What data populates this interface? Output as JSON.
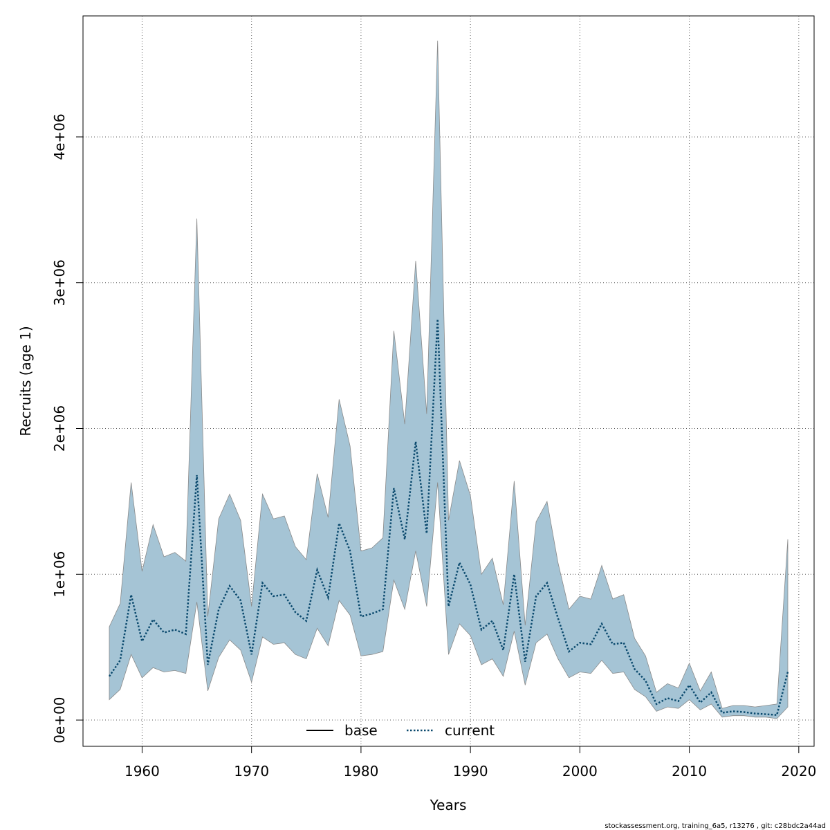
{
  "chart_data": {
    "type": "area",
    "xlabel": "Years",
    "ylabel": "Recruits (age 1)",
    "xlim": [
      1954.6,
      2021.4
    ],
    "ylim": [
      -180000,
      4830000
    ],
    "x_ticks": [
      1960,
      1970,
      1980,
      1990,
      2000,
      2010,
      2020
    ],
    "x_tick_labels": [
      "1960",
      "1970",
      "1980",
      "1990",
      "2000",
      "2010",
      "2020"
    ],
    "y_ticks": [
      0,
      1000000,
      2000000,
      3000000,
      4000000
    ],
    "y_tick_labels": [
      "0e+00",
      "1e+06",
      "2e+06",
      "3e+06",
      "4e+06"
    ],
    "grid": true,
    "legend": {
      "placement": "bottom-center",
      "items": [
        {
          "label": "base",
          "style": "solid",
          "color": "#000000"
        },
        {
          "label": "current",
          "style": "dotted",
          "color": "#0b4a6e"
        }
      ]
    },
    "colors": {
      "band_fill": "#a5c4d5",
      "band_stroke": "#8a8a8a",
      "current_line": "#0b4a6e",
      "base_line": "#000000"
    },
    "x": [
      1957,
      1958,
      1959,
      1960,
      1961,
      1962,
      1963,
      1964,
      1965,
      1966,
      1967,
      1968,
      1969,
      1970,
      1971,
      1972,
      1973,
      1974,
      1975,
      1976,
      1977,
      1978,
      1979,
      1980,
      1981,
      1982,
      1983,
      1984,
      1985,
      1986,
      1987,
      1988,
      1989,
      1990,
      1991,
      1992,
      1993,
      1994,
      1995,
      1996,
      1997,
      1998,
      1999,
      2000,
      2001,
      2002,
      2003,
      2004,
      2005,
      2006,
      2007,
      2008,
      2009,
      2010,
      2011,
      2012,
      2013,
      2014,
      2015,
      2016,
      2017,
      2018,
      2019
    ],
    "series": [
      {
        "name": "current",
        "values": [
          300000,
          410000,
          860000,
          540000,
          690000,
          600000,
          620000,
          590000,
          1680000,
          380000,
          760000,
          920000,
          820000,
          450000,
          940000,
          850000,
          860000,
          740000,
          680000,
          1030000,
          840000,
          1350000,
          1160000,
          710000,
          730000,
          760000,
          1590000,
          1240000,
          1910000,
          1280000,
          2750000,
          780000,
          1080000,
          930000,
          620000,
          680000,
          480000,
          1000000,
          400000,
          850000,
          940000,
          700000,
          470000,
          530000,
          520000,
          660000,
          520000,
          530000,
          350000,
          270000,
          110000,
          150000,
          130000,
          240000,
          120000,
          190000,
          50000,
          60000,
          55000,
          45000,
          40000,
          35000,
          330000
        ]
      },
      {
        "name": "upper",
        "values": [
          640000,
          800000,
          1630000,
          1020000,
          1340000,
          1120000,
          1150000,
          1090000,
          3440000,
          710000,
          1380000,
          1550000,
          1370000,
          780000,
          1550000,
          1380000,
          1400000,
          1190000,
          1100000,
          1690000,
          1390000,
          2200000,
          1880000,
          1160000,
          1180000,
          1250000,
          2670000,
          2030000,
          3150000,
          2100000,
          4660000,
          1370000,
          1780000,
          1540000,
          1000000,
          1110000,
          790000,
          1640000,
          650000,
          1360000,
          1500000,
          1080000,
          760000,
          850000,
          830000,
          1060000,
          830000,
          860000,
          560000,
          440000,
          190000,
          250000,
          220000,
          390000,
          200000,
          330000,
          80000,
          100000,
          100000,
          90000,
          100000,
          110000,
          1240000
        ]
      },
      {
        "name": "lower",
        "values": [
          140000,
          210000,
          450000,
          290000,
          360000,
          330000,
          340000,
          320000,
          810000,
          200000,
          430000,
          550000,
          480000,
          260000,
          570000,
          520000,
          530000,
          450000,
          420000,
          630000,
          510000,
          820000,
          720000,
          440000,
          450000,
          470000,
          960000,
          760000,
          1160000,
          780000,
          1630000,
          450000,
          660000,
          580000,
          380000,
          420000,
          300000,
          610000,
          240000,
          530000,
          590000,
          420000,
          290000,
          330000,
          320000,
          410000,
          320000,
          330000,
          210000,
          160000,
          60000,
          90000,
          80000,
          140000,
          70000,
          110000,
          20000,
          30000,
          30000,
          20000,
          20000,
          10000,
          90000
        ]
      }
    ]
  },
  "footer": {
    "credit": "stockassessment.org, training_6a5, r13276 , git: c28bdc2a44ad"
  }
}
